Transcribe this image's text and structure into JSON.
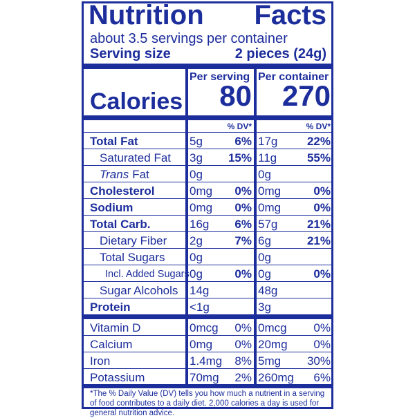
{
  "label": {
    "title": "Nutrition Facts",
    "servings": "about 3.5 servings per container",
    "serving_size_label": "Serving size",
    "serving_size_value": "2 pieces (24g)",
    "col_headers": [
      "Per serving",
      "Per container"
    ],
    "calories_label": "Calories",
    "calories": [
      "80",
      "270"
    ],
    "dv_header": [
      "% DV*",
      "% DV*"
    ],
    "rows": [
      {
        "name": "Total Fat",
        "bold": true,
        "indent": 0,
        "cells": [
          "5g",
          "6%",
          "17g",
          "22%"
        ]
      },
      {
        "name": "Saturated Fat",
        "bold": false,
        "indent": 1,
        "cells": [
          "3g",
          "15%",
          "11g",
          "55%"
        ]
      },
      {
        "italic_prefix": "Trans",
        "name": "Fat",
        "bold": false,
        "indent": 1,
        "cells": [
          "0g",
          null,
          "0g",
          null
        ]
      },
      {
        "name": "Cholesterol",
        "bold": true,
        "indent": 0,
        "cells": [
          "0mg",
          "0%",
          "0mg",
          "0%"
        ]
      },
      {
        "name": "Sodium",
        "bold": true,
        "indent": 0,
        "cells": [
          "0mg",
          "0%",
          "0mg",
          "0%"
        ]
      },
      {
        "name": "Total Carb.",
        "bold": true,
        "indent": 0,
        "cells": [
          "16g",
          "6%",
          "57g",
          "21%"
        ]
      },
      {
        "name": "Dietary Fiber",
        "bold": false,
        "indent": 1,
        "cells": [
          "2g",
          "7%",
          "6g",
          "21%"
        ]
      },
      {
        "name": "Total Sugars",
        "bold": false,
        "indent": 1,
        "cells": [
          "0g",
          null,
          "0g",
          null
        ]
      },
      {
        "name": "Incl. Added Sugars",
        "bold": false,
        "indent": 2,
        "cells": [
          "0g",
          "0%",
          "0g",
          "0%"
        ]
      },
      {
        "name": "Sugar Alcohols",
        "bold": false,
        "indent": 1,
        "cells": [
          "14g",
          null,
          "48g",
          null
        ]
      },
      {
        "name": "Protein",
        "bold": true,
        "indent": 0,
        "cells": [
          "<1g",
          null,
          "3g",
          null
        ]
      }
    ],
    "micros": [
      {
        "name": "Vitamin D",
        "cells": [
          "0mcg",
          "0%",
          "0mcg",
          "0%"
        ]
      },
      {
        "name": "Calcium",
        "cells": [
          "0mg",
          "0%",
          "20mg",
          "0%"
        ]
      },
      {
        "name": "Iron",
        "cells": [
          "1.4mg",
          "8%",
          "5mg",
          "30%"
        ]
      },
      {
        "name": "Potassium",
        "cells": [
          "70mg",
          "2%",
          "260mg",
          "6%"
        ]
      }
    ],
    "footnote": "*The % Daily Value (DV) tells you how much a nutrient in a serving of food contributes to a daily diet. 2,000 calories a day is used for general nutrition advice."
  }
}
